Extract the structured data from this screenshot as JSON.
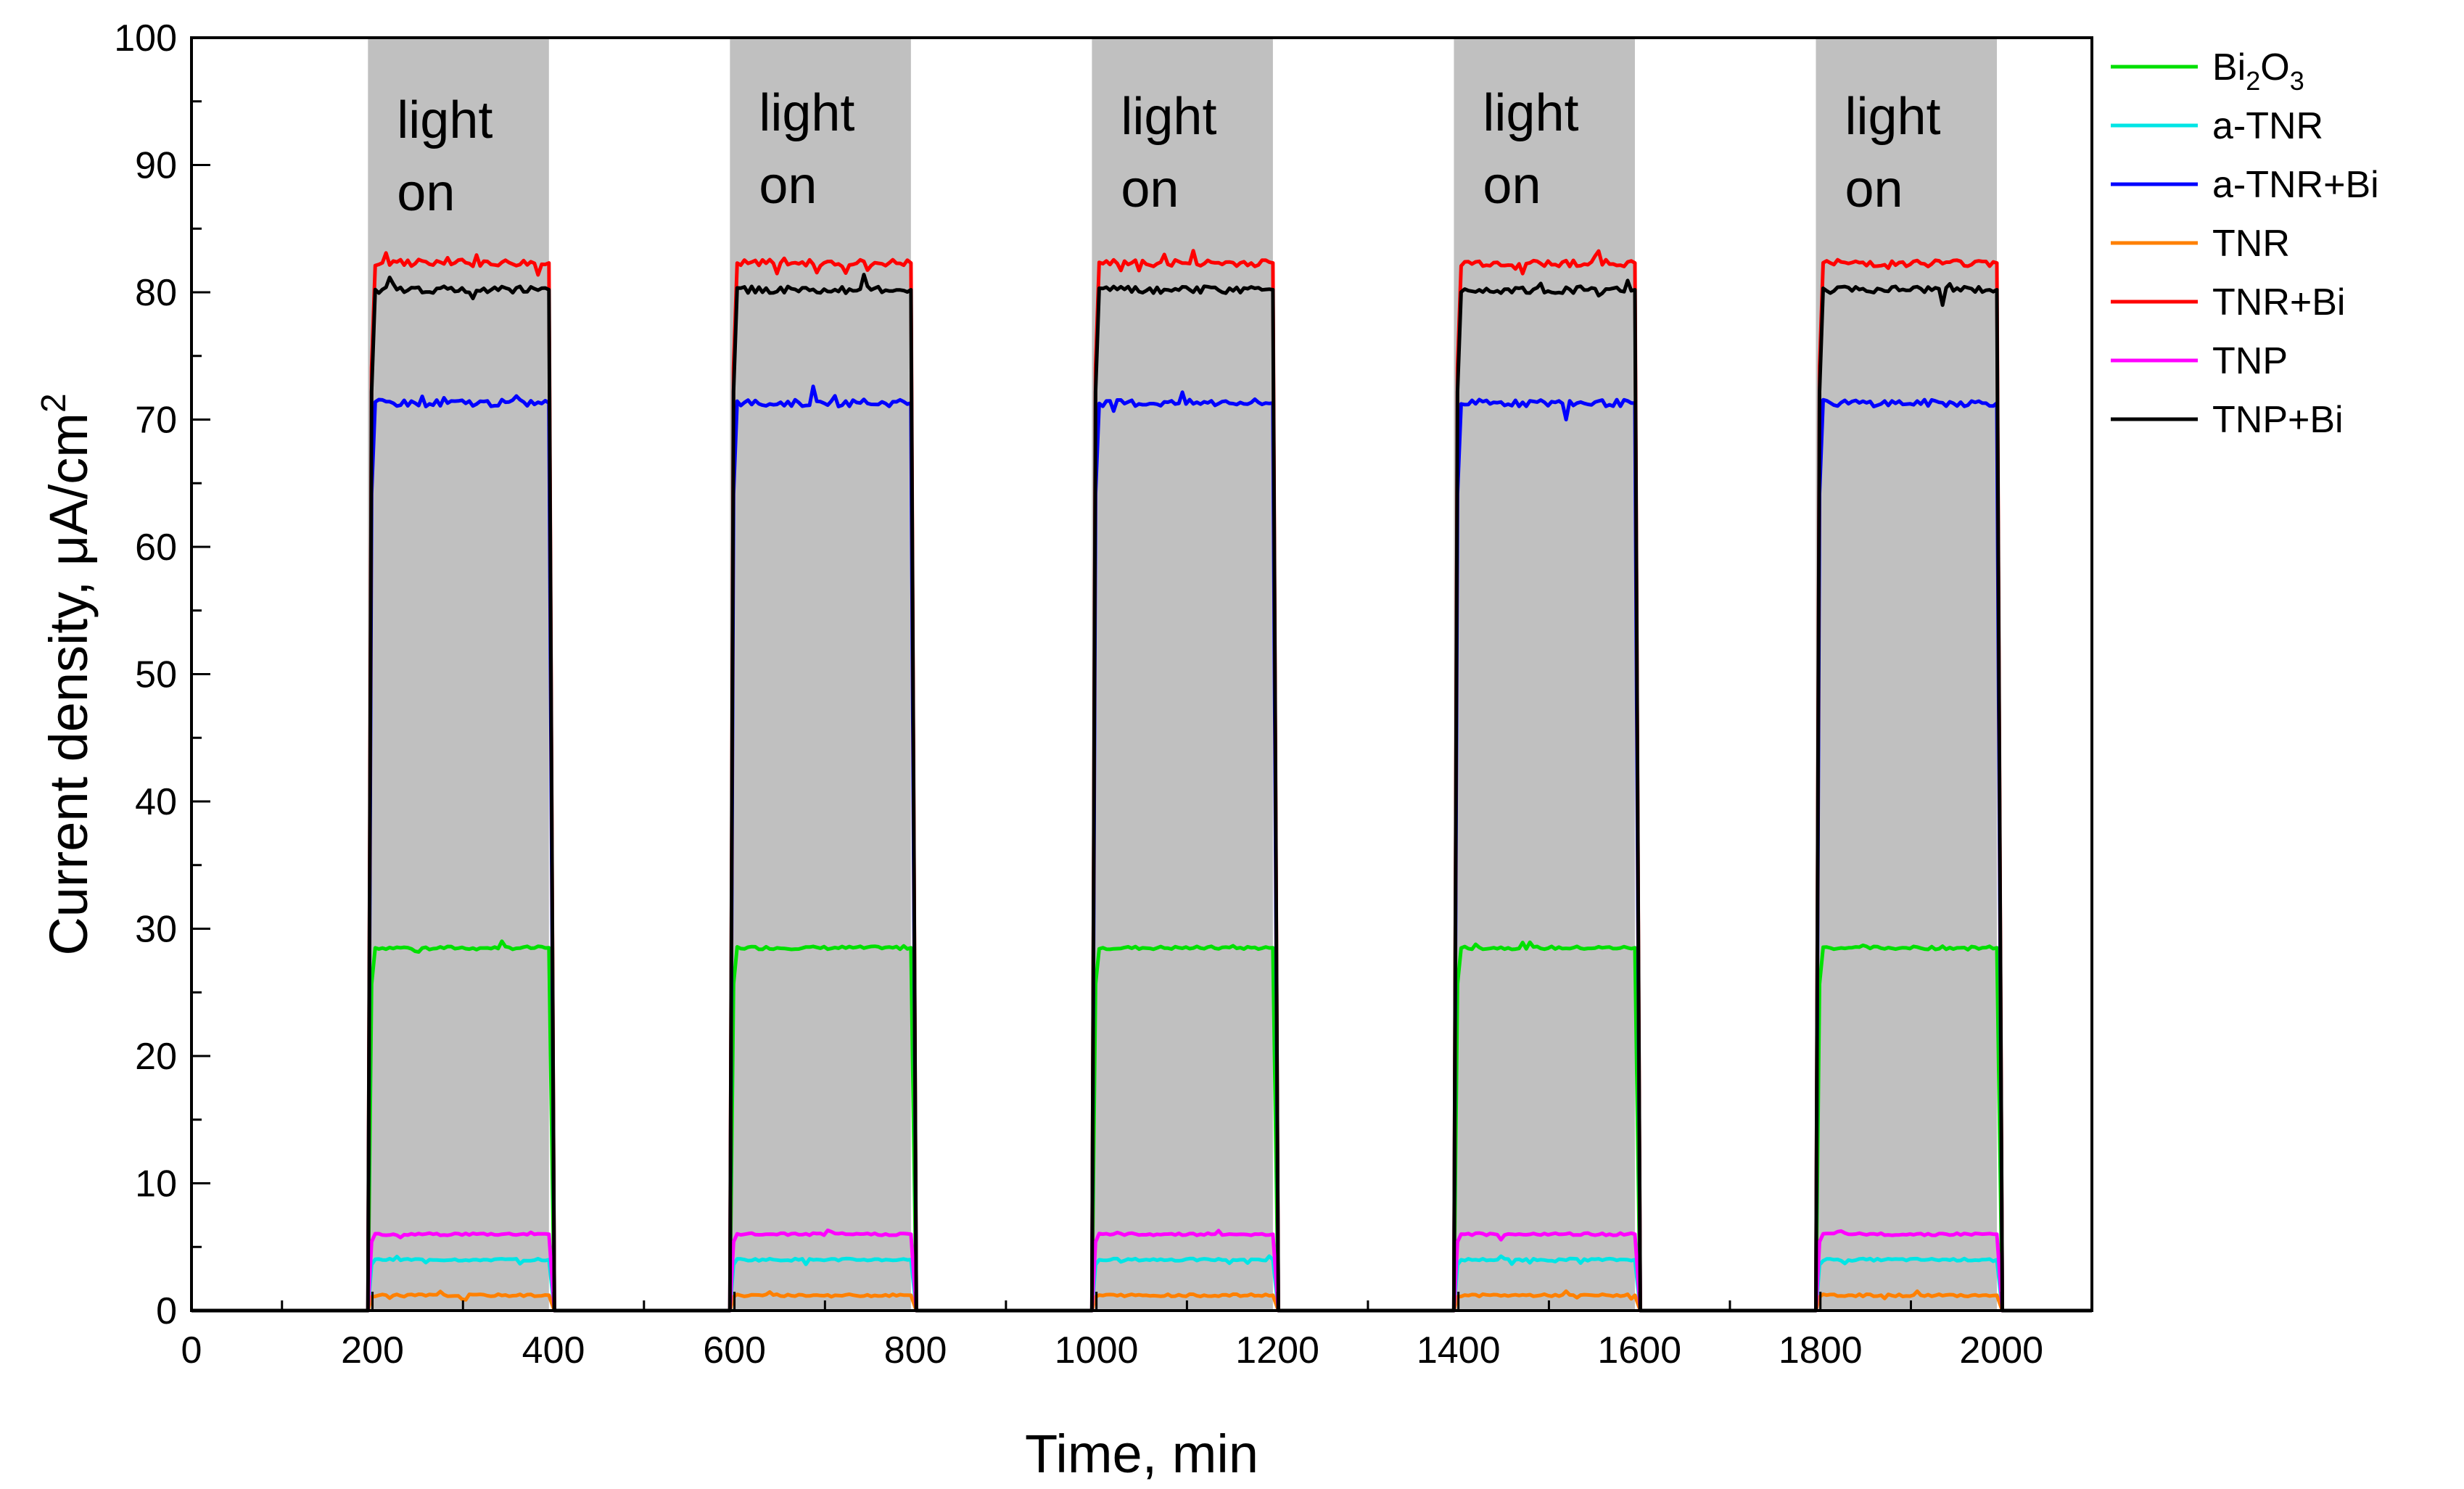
{
  "chart_data": {
    "type": "line",
    "title": "",
    "xlabel": "Time, min",
    "ylabel": "Current density, μA/cm2",
    "ylabel_parts": {
      "main": "Current density, μA/cm",
      "superscript": "2"
    },
    "xlim": [
      0,
      2100
    ],
    "ylim": [
      0,
      100
    ],
    "xticks": [
      0,
      200,
      400,
      600,
      800,
      1000,
      1200,
      1400,
      1600,
      1800,
      2000
    ],
    "yticks": [
      0,
      10,
      20,
      30,
      40,
      50,
      60,
      70,
      80,
      90,
      100
    ],
    "grid": false,
    "legend_position": "right",
    "light_on_intervals": [
      [
        195,
        395
      ],
      [
        595,
        795
      ],
      [
        995,
        1195
      ],
      [
        1395,
        1595
      ],
      [
        1795,
        1995
      ]
    ],
    "band_label_lines": [
      "light",
      "on"
    ],
    "series": [
      {
        "name": "Bi2O3",
        "legend_main": "Bi",
        "legend_sub1": "2",
        "legend_mid": "O",
        "legend_sub2": "3",
        "color": "#00e000",
        "on_value": 28.5,
        "off_value": 0
      },
      {
        "name": "a-TNR",
        "color": "#00e5e5",
        "on_value": 4.0,
        "off_value": 0
      },
      {
        "name": "a-TNR+Bi",
        "color": "#0000ff",
        "on_value": 71.3,
        "off_value": 0
      },
      {
        "name": "TNR",
        "color": "#ff8000",
        "on_value": 1.2,
        "off_value": 0
      },
      {
        "name": "TNR+Bi",
        "color": "#ff0000",
        "on_value": 82.3,
        "off_value": 0
      },
      {
        "name": "TNP",
        "color": "#ff00ff",
        "on_value": 6.0,
        "off_value": 0
      },
      {
        "name": "TNP+Bi",
        "color": "#000000",
        "on_value": 80.2,
        "off_value": 0
      }
    ]
  }
}
